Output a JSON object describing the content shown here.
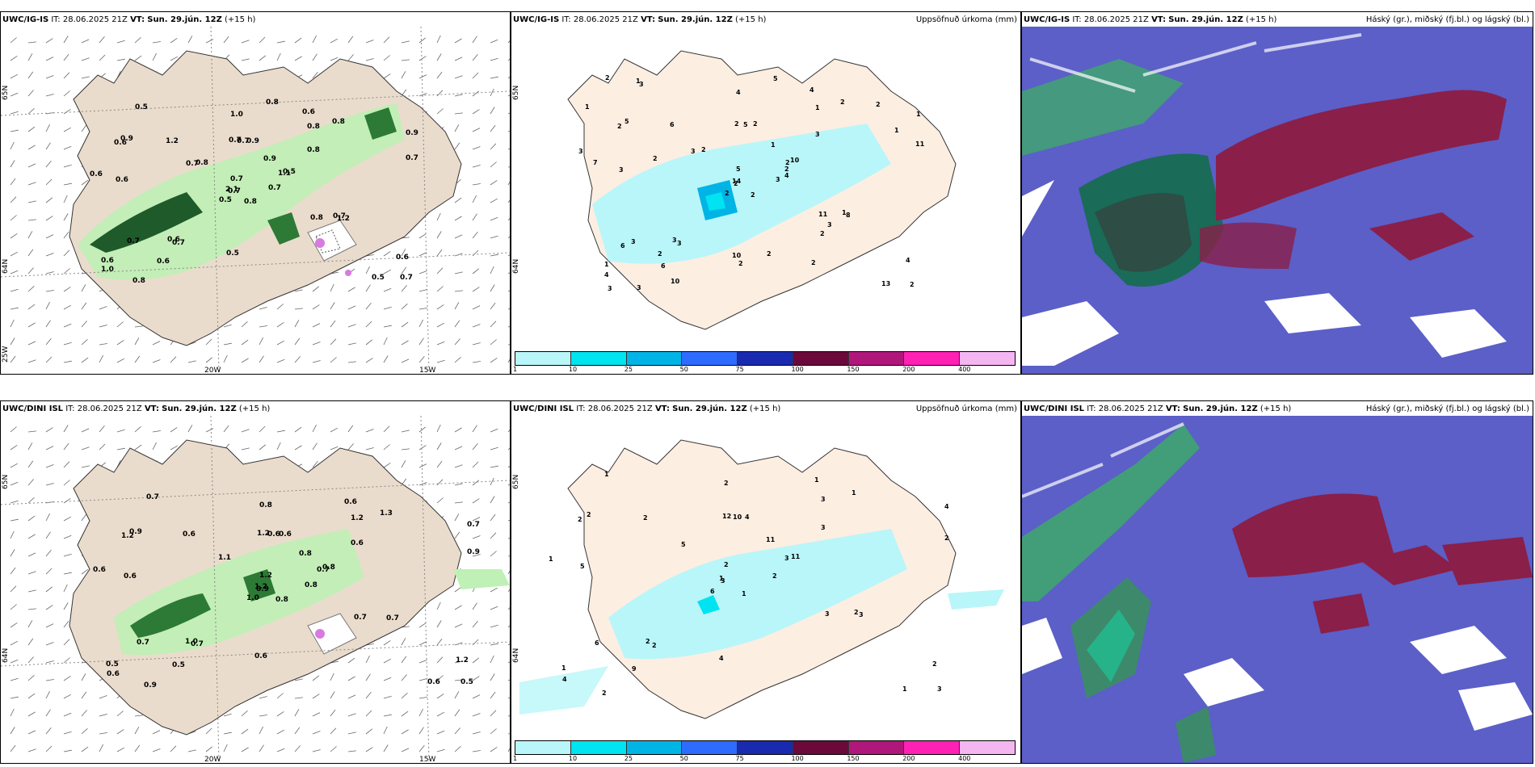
{
  "rows": [
    {
      "model": "UWC/IG-IS",
      "it_label": "IT:",
      "it_value": "28.06.2025 21Z",
      "vt_label": "VT:",
      "vt_value": "Sun. 29.jún. 12Z",
      "lead": "(+15 h)",
      "wind_panel": {
        "lat_labels": [
          "65N",
          "64N",
          "25W"
        ],
        "lon_labels": [
          "20W",
          "15W"
        ],
        "values": [
          "0.8",
          "0.6",
          "0.7",
          "0.6",
          "1.1",
          "0.7",
          "0.6",
          "0.9",
          "0.8",
          "0.7",
          "0.5",
          "0.7",
          "0.6",
          "0.9",
          "0.5",
          "0.8",
          "0.8",
          "0.7",
          "0.9",
          "0.7",
          "0.8",
          "1.0",
          "0.6",
          "0.7",
          "0.5",
          "1.2",
          "0.9",
          "1.0",
          "0.6",
          "0.8",
          "0.7",
          "2.1",
          "0.5",
          "0.7",
          "1.2",
          "0.8",
          "0.6",
          "0.5",
          "0.6",
          "0.7",
          "0.8",
          "0.7"
        ]
      },
      "precip_panel": {
        "title_right": "Uppsöfnuð úrkoma (mm)",
        "lat_labels": [
          "65N",
          "64N"
        ],
        "values": [
          "2",
          "2",
          "2",
          "1",
          "2",
          "3",
          "4",
          "2",
          "1",
          "3",
          "3",
          "2",
          "3",
          "1",
          "2",
          "3",
          "3",
          "2",
          "1",
          "3",
          "2",
          "4",
          "6",
          "5",
          "10",
          "8",
          "5",
          "4",
          "7",
          "11",
          "11",
          "14",
          "10",
          "5",
          "6",
          "2",
          "3",
          "13",
          "4",
          "1",
          "5",
          "3",
          "2",
          "2",
          "10",
          "3",
          "2",
          "3",
          "2",
          "4",
          "6",
          "1",
          "1",
          "3",
          "2",
          "2",
          "1",
          "2",
          "2",
          "2"
        ]
      },
      "cloud_panel": {
        "title_right": "Háský (gr.), miðský (fj.bl.) og lágský (bl.)"
      }
    },
    {
      "model": "UWC/DINI ISL",
      "it_label": "IT:",
      "it_value": "28.06.2025 21Z",
      "vt_label": "VT:",
      "vt_value": "Sun. 29.jún. 12Z",
      "lead": "(+15 h)",
      "wind_panel": {
        "lat_labels": [
          "65N",
          "64N"
        ],
        "lon_labels": [
          "20W",
          "15W"
        ],
        "values": [
          "0.8",
          "1.2",
          "0.9",
          "0.5",
          "0.7",
          "0.7",
          "0.6",
          "0.6",
          "1.2",
          "0.8",
          "0.7",
          "0.5",
          "0.6",
          "0.7",
          "1.0",
          "0.6",
          "0.9",
          "1.2",
          "0.8",
          "0.7",
          "1.1",
          "0.6",
          "0.5",
          "0.6",
          "0.8",
          "0.7",
          "0.9",
          "0.8",
          "0.6",
          "0.7",
          "0.9",
          "1.2",
          "0.6",
          "1.2",
          "0.6",
          "1.3",
          "1.0",
          "0.6",
          "1.2"
        ]
      },
      "precip_panel": {
        "title_right": "Uppsöfnuð úrkoma (mm)",
        "lat_labels": [
          "65N",
          "64N"
        ],
        "values": [
          "1",
          "2",
          "3",
          "1",
          "3",
          "2",
          "1",
          "4",
          "3",
          "2",
          "1",
          "3",
          "5",
          "4",
          "6",
          "3",
          "2",
          "12",
          "11",
          "6",
          "5",
          "4",
          "9",
          "10",
          "11",
          "3",
          "2",
          "2",
          "1",
          "3",
          "2",
          "1",
          "4",
          "2",
          "2",
          "1",
          "2",
          "1",
          "2",
          "2"
        ]
      },
      "cloud_panel": {
        "title_right": "Háský (gr.), miðský (fj.bl.) og lágský (bl.)"
      }
    }
  ],
  "colorbar": {
    "ticks": [
      "1",
      "10",
      "25",
      "50",
      "75",
      "100",
      "150",
      "200",
      "400"
    ],
    "colors": [
      "#b9f6f9",
      "#00e3f0",
      "#00b4e6",
      "#2e6bff",
      "#1a2ab0",
      "#6b0a3a",
      "#b0177a",
      "#ff20b4",
      "#f4b6f0"
    ]
  }
}
